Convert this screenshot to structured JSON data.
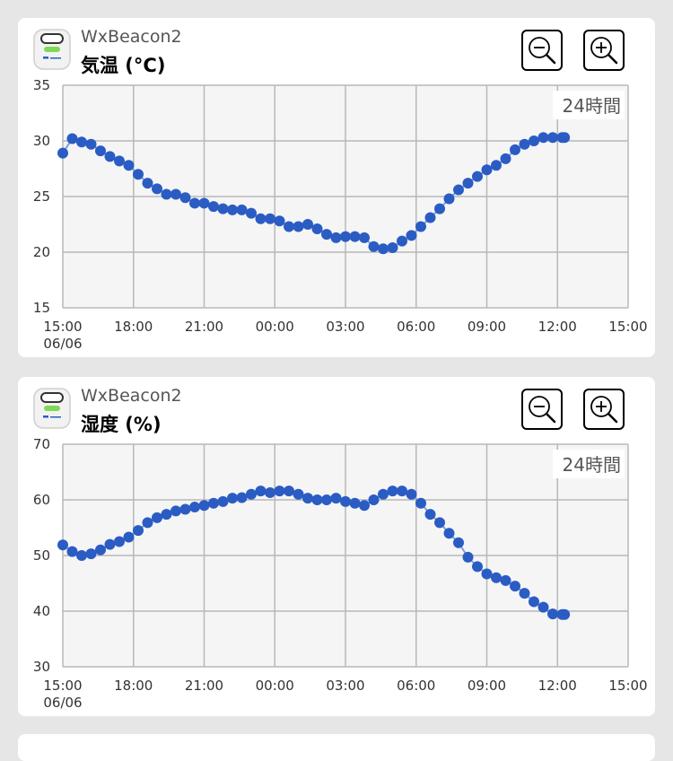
{
  "cards": [
    {
      "device_name": "WxBeacon2",
      "metric_title": "気温 (°C)",
      "range_label": "24時間",
      "chart_data": {
        "type": "line",
        "title": "気温 (°C)",
        "ylim": [
          15,
          35
        ],
        "y_ticks": [
          "35",
          "30",
          "25",
          "20",
          "15"
        ],
        "x_ticks": [
          "15:00",
          "18:00",
          "21:00",
          "00:00",
          "03:00",
          "06:00",
          "09:00",
          "12:00",
          "15:00"
        ],
        "x_sublabel": "06/06",
        "grid": true,
        "x": [
          0,
          0.4,
          0.8,
          1.2,
          1.6,
          2.0,
          2.4,
          2.8,
          3.2,
          3.6,
          4.0,
          4.4,
          4.8,
          5.2,
          5.6,
          6.0,
          6.4,
          6.8,
          7.2,
          7.6,
          8.0,
          8.4,
          8.8,
          9.2,
          9.6,
          10.0,
          10.4,
          10.8,
          11.2,
          11.6,
          12.0,
          12.4,
          12.8,
          13.2,
          13.6,
          14.0,
          14.4,
          14.8,
          15.2,
          15.6,
          16.0,
          16.4,
          16.8,
          17.2,
          17.6,
          18.0,
          18.4,
          18.8,
          19.2,
          19.6,
          20.0,
          20.4,
          20.8,
          21.2,
          21.3
        ],
        "values": [
          28.9,
          30.2,
          29.9,
          29.7,
          29.1,
          28.6,
          28.2,
          27.8,
          27.0,
          26.2,
          25.7,
          25.2,
          25.2,
          24.9,
          24.4,
          24.4,
          24.1,
          23.9,
          23.8,
          23.8,
          23.5,
          23.0,
          23.0,
          22.8,
          22.3,
          22.3,
          22.5,
          22.1,
          21.6,
          21.3,
          21.4,
          21.4,
          21.3,
          20.5,
          20.3,
          20.4,
          21.0,
          21.5,
          22.3,
          23.1,
          23.9,
          24.8,
          25.6,
          26.2,
          26.8,
          27.4,
          27.8,
          28.4,
          29.2,
          29.7,
          30.0,
          30.3,
          30.3,
          30.3,
          30.3
        ],
        "color": "#2a5cc4"
      }
    },
    {
      "device_name": "WxBeacon2",
      "metric_title": "湿度 (%)",
      "range_label": "24時間",
      "chart_data": {
        "type": "line",
        "title": "湿度 (%)",
        "ylim": [
          30,
          70
        ],
        "y_ticks": [
          "70",
          "60",
          "50",
          "40",
          "30"
        ],
        "x_ticks": [
          "15:00",
          "18:00",
          "21:00",
          "00:00",
          "03:00",
          "06:00",
          "09:00",
          "12:00",
          "15:00"
        ],
        "x_sublabel": "06/06",
        "grid": true,
        "x": [
          0,
          0.4,
          0.8,
          1.2,
          1.6,
          2.0,
          2.4,
          2.8,
          3.2,
          3.6,
          4.0,
          4.4,
          4.8,
          5.2,
          5.6,
          6.0,
          6.4,
          6.8,
          7.2,
          7.6,
          8.0,
          8.4,
          8.8,
          9.2,
          9.6,
          10.0,
          10.4,
          10.8,
          11.2,
          11.6,
          12.0,
          12.4,
          12.8,
          13.2,
          13.6,
          14.0,
          14.4,
          14.8,
          15.2,
          15.6,
          16.0,
          16.4,
          16.8,
          17.2,
          17.6,
          18.0,
          18.4,
          18.8,
          19.2,
          19.6,
          20.0,
          20.4,
          20.8,
          21.2,
          21.3
        ],
        "values": [
          51.9,
          50.7,
          50.0,
          50.3,
          51.0,
          52.0,
          52.5,
          53.3,
          54.5,
          55.9,
          56.8,
          57.4,
          58.0,
          58.3,
          58.7,
          59.0,
          59.4,
          59.7,
          60.3,
          60.4,
          61.0,
          61.6,
          61.3,
          61.6,
          61.6,
          61.0,
          60.3,
          60.0,
          60.0,
          60.3,
          59.7,
          59.4,
          59.0,
          60.0,
          61.0,
          61.6,
          61.6,
          61.0,
          59.4,
          57.4,
          55.9,
          54.0,
          52.3,
          49.7,
          48.0,
          46.7,
          46.0,
          45.5,
          44.5,
          43.2,
          41.7,
          40.7,
          39.5,
          39.4,
          39.4
        ],
        "color": "#2a5cc4"
      }
    }
  ],
  "icons": {
    "device": "wxbeacon-device-icon",
    "zoom_out": "zoom-out-icon",
    "zoom_in": "zoom-in-icon"
  },
  "colors": {
    "background": "#e6e6e6",
    "card": "#ffffff",
    "plot_bg": "#f5f5f5",
    "grid": "#b8b8b8",
    "series": "#2a5cc4",
    "device_led": "#7ed957"
  }
}
